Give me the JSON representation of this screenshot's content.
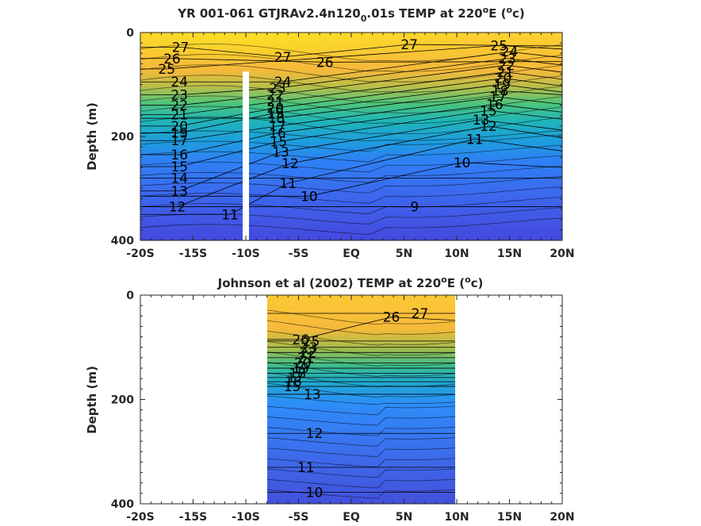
{
  "chart_data": [
    {
      "type": "heatmap",
      "subtype": "filled-contour",
      "title_parts": {
        "main": "YR 001-061 GTJRAv2.4n120",
        "sub": "0",
        "rest": ".01s TEMP at 220",
        "sup": "o",
        "rest2": "E (",
        "sup2": "o",
        "rest3": "c)"
      },
      "xlabel": "",
      "ylabel": "Depth (m)",
      "xlim": [
        -20,
        20
      ],
      "ylim": [
        400,
        0
      ],
      "xticks": [
        -20,
        -15,
        -10,
        -5,
        0,
        5,
        10,
        15,
        20
      ],
      "xtick_labels": [
        "-20S",
        "-15S",
        "-10S",
        "-5S",
        "EQ",
        "5N",
        "10N",
        "15N",
        "20N"
      ],
      "yticks": [
        0,
        200,
        400
      ],
      "ytick_labels": [
        "0",
        "200",
        "400"
      ],
      "data_extent_lat": [
        -20,
        20
      ],
      "gap_lat": -10,
      "gap_depth_top": 75,
      "colormap": [
        "#3e26a8",
        "#4652ec",
        "#2d8ef9",
        "#1bb0d3",
        "#19c2a0",
        "#8cbd54",
        "#dcb53b",
        "#fdd832",
        "#f9fb0e"
      ],
      "contour_labels": [
        {
          "v": "27",
          "lat": -16.2,
          "depth": 28
        },
        {
          "v": "26",
          "lat": -17.0,
          "depth": 50
        },
        {
          "v": "25",
          "lat": -17.5,
          "depth": 70
        },
        {
          "v": "24",
          "lat": -16.3,
          "depth": 95
        },
        {
          "v": "23",
          "lat": -16.3,
          "depth": 120
        },
        {
          "v": "22",
          "lat": -16.3,
          "depth": 140
        },
        {
          "v": "21",
          "lat": -16.3,
          "depth": 158
        },
        {
          "v": "20",
          "lat": -16.3,
          "depth": 180
        },
        {
          "v": "19",
          "lat": -16.3,
          "depth": 193
        },
        {
          "v": "17",
          "lat": -16.3,
          "depth": 208
        },
        {
          "v": "16",
          "lat": -16.3,
          "depth": 235
        },
        {
          "v": "15",
          "lat": -16.3,
          "depth": 258
        },
        {
          "v": "14",
          "lat": -16.3,
          "depth": 280
        },
        {
          "v": "13",
          "lat": -16.3,
          "depth": 305
        },
        {
          "v": "12",
          "lat": -16.5,
          "depth": 335
        },
        {
          "v": "11",
          "lat": -11.5,
          "depth": 350
        },
        {
          "v": "27",
          "lat": -6.5,
          "depth": 47
        },
        {
          "v": "26",
          "lat": -2.5,
          "depth": 57
        },
        {
          "v": "27",
          "lat": 5.5,
          "depth": 23
        },
        {
          "v": "25",
          "lat": 14.0,
          "depth": 25
        },
        {
          "v": "24",
          "lat": 15.0,
          "depth": 37
        },
        {
          "v": "23",
          "lat": 14.8,
          "depth": 50
        },
        {
          "v": "22",
          "lat": 14.7,
          "depth": 63
        },
        {
          "v": "21",
          "lat": 14.6,
          "depth": 76
        },
        {
          "v": "20",
          "lat": 14.4,
          "depth": 88
        },
        {
          "v": "19",
          "lat": 14.3,
          "depth": 100
        },
        {
          "v": "18",
          "lat": 14.1,
          "depth": 112
        },
        {
          "v": "17",
          "lat": 13.9,
          "depth": 124
        },
        {
          "v": "16",
          "lat": 13.6,
          "depth": 138
        },
        {
          "v": "15",
          "lat": 13.0,
          "depth": 150
        },
        {
          "v": "13",
          "lat": 12.3,
          "depth": 168
        },
        {
          "v": "12",
          "lat": 13.0,
          "depth": 180
        },
        {
          "v": "11",
          "lat": 11.7,
          "depth": 205
        },
        {
          "v": "10",
          "lat": 10.5,
          "depth": 250
        },
        {
          "v": "10",
          "lat": -4.0,
          "depth": 315
        },
        {
          "v": "9",
          "lat": 6.0,
          "depth": 335
        },
        {
          "v": "24",
          "lat": -6.5,
          "depth": 95
        },
        {
          "v": "23",
          "lat": -7.0,
          "depth": 107
        },
        {
          "v": "22",
          "lat": -7.2,
          "depth": 120
        },
        {
          "v": "21",
          "lat": -7.2,
          "depth": 133
        },
        {
          "v": "20",
          "lat": -7.2,
          "depth": 145
        },
        {
          "v": "19",
          "lat": -7.2,
          "depth": 155
        },
        {
          "v": "18",
          "lat": -7.1,
          "depth": 165
        },
        {
          "v": "17",
          "lat": -7.0,
          "depth": 180
        },
        {
          "v": "16",
          "lat": -7.0,
          "depth": 193
        },
        {
          "v": "15",
          "lat": -6.9,
          "depth": 210
        },
        {
          "v": "13",
          "lat": -6.7,
          "depth": 230
        },
        {
          "v": "12",
          "lat": -5.8,
          "depth": 252
        },
        {
          "v": "11",
          "lat": -6.0,
          "depth": 290
        }
      ]
    },
    {
      "type": "heatmap",
      "subtype": "filled-contour",
      "title_parts": {
        "main": "Johnson et al (2002) TEMP at 220",
        "sup": "o",
        "rest": "E (",
        "sup2": "o",
        "rest2": "c)"
      },
      "xlabel": "",
      "ylabel": "Depth (m)",
      "xlim": [
        -20,
        20
      ],
      "ylim": [
        400,
        0
      ],
      "xticks": [
        -20,
        -15,
        -10,
        -5,
        0,
        5,
        10,
        15,
        20
      ],
      "xtick_labels": [
        "-20S",
        "-15S",
        "-10S",
        "-5S",
        "EQ",
        "5N",
        "10N",
        "15N",
        "20N"
      ],
      "yticks": [
        0,
        200,
        400
      ],
      "ytick_labels": [
        "0",
        "200",
        "400"
      ],
      "data_extent_lat": [
        -8,
        10
      ],
      "colormap": [
        "#3e26a8",
        "#4652ec",
        "#2d8ef9",
        "#1bb0d3",
        "#19c2a0",
        "#8cbd54",
        "#dcb53b",
        "#fdd832",
        "#f9fb0e"
      ],
      "contour_labels": [
        {
          "v": "26",
          "lat": 3.8,
          "depth": 42
        },
        {
          "v": "27",
          "lat": 6.5,
          "depth": 35
        },
        {
          "v": "26",
          "lat": -4.8,
          "depth": 85
        },
        {
          "v": "25",
          "lat": -3.8,
          "depth": 88
        },
        {
          "v": "23",
          "lat": -4.0,
          "depth": 100
        },
        {
          "v": "22",
          "lat": -4.1,
          "depth": 110
        },
        {
          "v": "21",
          "lat": -4.3,
          "depth": 120
        },
        {
          "v": "20",
          "lat": -4.6,
          "depth": 130
        },
        {
          "v": "19",
          "lat": -4.8,
          "depth": 140
        },
        {
          "v": "18",
          "lat": -5.1,
          "depth": 150
        },
        {
          "v": "17",
          "lat": -5.3,
          "depth": 158
        },
        {
          "v": "16",
          "lat": -5.5,
          "depth": 166
        },
        {
          "v": "15",
          "lat": -5.6,
          "depth": 175
        },
        {
          "v": "13",
          "lat": -3.7,
          "depth": 190
        },
        {
          "v": "12",
          "lat": -3.5,
          "depth": 265
        },
        {
          "v": "11",
          "lat": -4.3,
          "depth": 330
        },
        {
          "v": "10",
          "lat": -3.5,
          "depth": 378
        }
      ]
    }
  ]
}
